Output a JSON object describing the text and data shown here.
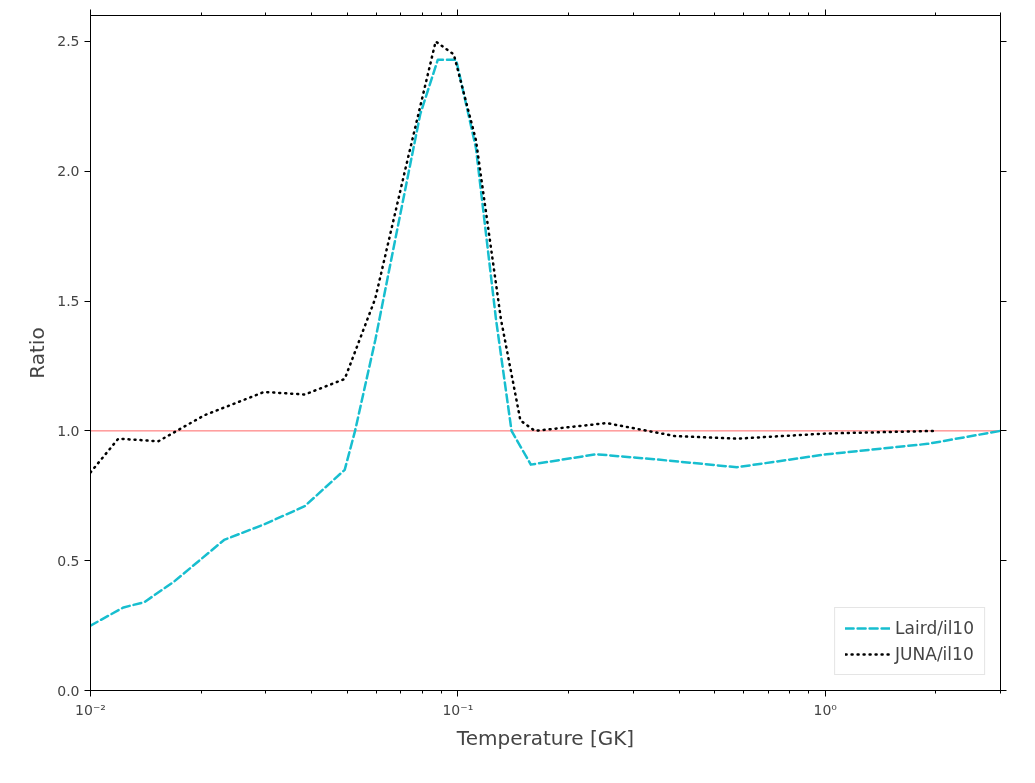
{
  "chart_data": {
    "type": "line",
    "xlabel": "Temperature [GK]",
    "ylabel": "Ratio",
    "log": "x",
    "xlim": [
      0.01,
      3
    ],
    "xticks": [
      {
        "value": 0.01,
        "label": "10⁻²"
      },
      {
        "value": 0.1,
        "label": "10⁻¹"
      },
      {
        "value": 1,
        "label": "10⁰"
      }
    ],
    "ylim": [
      0,
      2.6
    ],
    "yticks": [
      {
        "value": 0,
        "label": "0.0"
      },
      {
        "value": 0.5,
        "label": "0.5"
      },
      {
        "value": 1,
        "label": "1.0"
      },
      {
        "value": 1.5,
        "label": "1.5"
      },
      {
        "value": 2,
        "label": "2.0"
      },
      {
        "value": 2.5,
        "label": "2.5"
      }
    ],
    "grid": false,
    "legend": "bottom right",
    "ref_lines": [
      {
        "axis": "y",
        "value": 1,
        "color": "#ff6666",
        "line_style": "solid"
      }
    ],
    "series": [
      {
        "name": "Laird/il10",
        "color": "#17becf",
        "line_style": "dashed",
        "x": [
          0.01,
          0.0123,
          0.014,
          0.0169,
          0.0231,
          0.0297,
          0.0383,
          0.0492,
          0.0525,
          0.0596,
          0.0676,
          0.079,
          0.0882,
          0.0989,
          0.112,
          0.127,
          0.14,
          0.158,
          0.238,
          0.347,
          0.575,
          1.01,
          1.9,
          3
        ],
        "values": [
          0.25,
          0.32,
          0.34,
          0.42,
          0.58,
          0.64,
          0.71,
          0.85,
          1.0,
          1.35,
          1.74,
          2.22,
          2.43,
          2.43,
          2.09,
          1.43,
          1.0,
          0.87,
          0.91,
          0.89,
          0.86,
          0.91,
          0.95,
          1.0
        ]
      },
      {
        "name": "JUNA/il10",
        "color": "#000000",
        "line_style": "dotted",
        "x": [
          0.01,
          0.0119,
          0.0153,
          0.0204,
          0.0297,
          0.0383,
          0.0492,
          0.0596,
          0.072,
          0.087,
          0.0975,
          0.112,
          0.131,
          0.148,
          0.162,
          0.254,
          0.39,
          0.575,
          1.01,
          2.0
        ],
        "values": [
          0.84,
          0.97,
          0.96,
          1.06,
          1.15,
          1.14,
          1.2,
          1.51,
          2.01,
          2.5,
          2.45,
          2.12,
          1.43,
          1.04,
          1.0,
          1.03,
          0.98,
          0.97,
          0.99,
          1.0
        ]
      }
    ]
  }
}
